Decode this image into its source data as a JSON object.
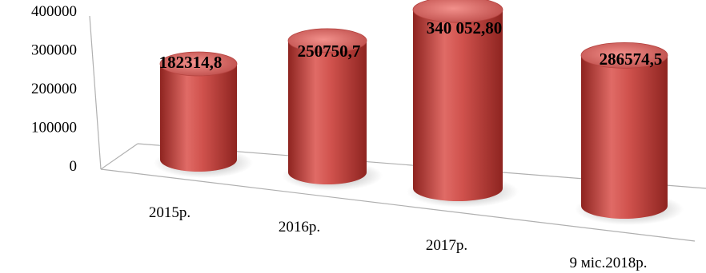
{
  "chart_data": {
    "type": "bar",
    "style": "3d-cylinder",
    "categories": [
      "2015р.",
      "2016р.",
      "2017р.",
      "9 міс.2018р."
    ],
    "values": [
      182314.8,
      250750.7,
      340052.8,
      286574.5
    ],
    "data_labels": [
      "182314,8",
      "250750,7",
      "340 052,80",
      "286574,5"
    ],
    "y_ticks": [
      "0",
      "100000",
      "200000",
      "300000",
      "400000"
    ],
    "ylim": [
      0,
      400000
    ],
    "grid": false,
    "legend": "none",
    "colors": {
      "bar": "#c0504d",
      "bar_dark": "#8e2420",
      "bar_light": "#f08a86",
      "axis": "#b0b0b0"
    }
  }
}
